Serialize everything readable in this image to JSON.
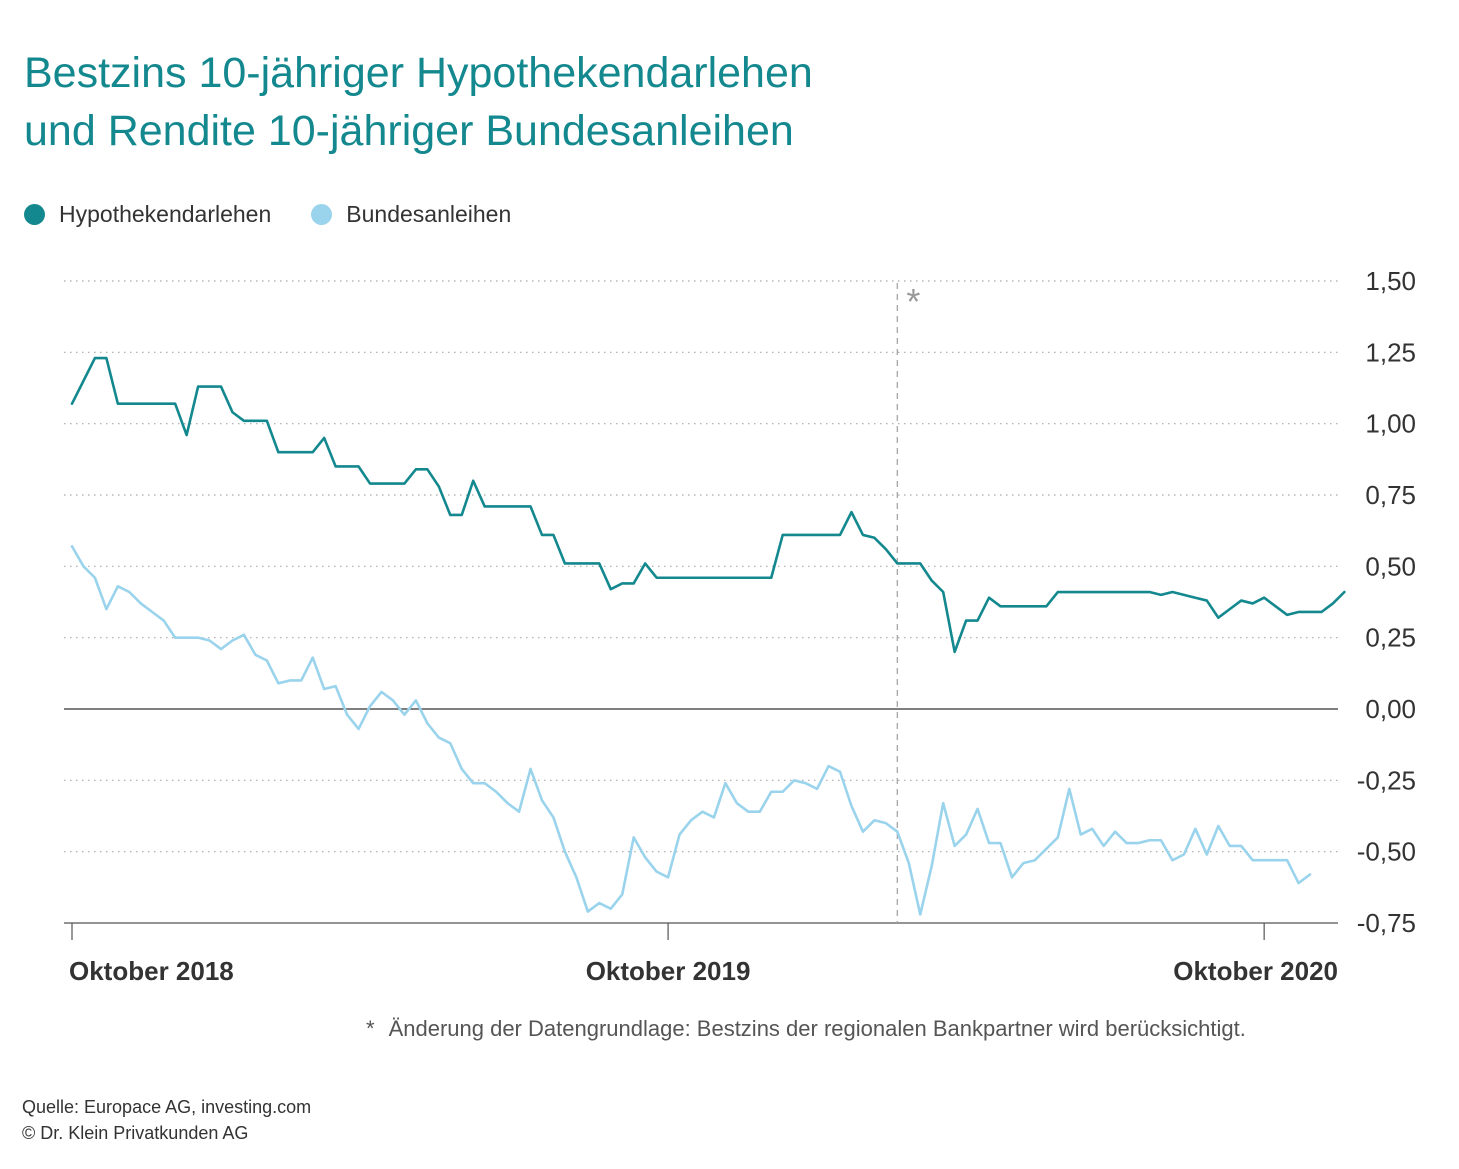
{
  "title_line1": "Bestzins 10-jähriger Hypothekendarlehen",
  "title_line2": "und Rendite 10-jähriger Bundesanleihen",
  "legend": [
    {
      "label": "Hypothekendarlehen",
      "color": "#13888e"
    },
    {
      "label": "Bundesanleihen",
      "color": "#9ad3ec"
    }
  ],
  "footnote_marker": "*",
  "footnote_text": "Änderung der Datengrundlage: Bestzins der regionalen Bankpartner wird berücksichtigt.",
  "source_line1": "Quelle: Europace AG, investing.com",
  "source_line2": "© Dr. Klein Privatkunden AG",
  "chart_data": {
    "type": "line",
    "title": "Bestzins 10-jähriger Hypothekendarlehen und Rendite 10-jähriger Bundesanleihen",
    "xlabel": "",
    "ylabel": "",
    "ylim": [
      -0.75,
      1.5
    ],
    "yticks": [
      "1,50",
      "1,25",
      "1,00",
      "0,75",
      "0,50",
      "0,25",
      "0,00",
      "-0,25",
      "-0,50",
      "-0,75"
    ],
    "ytick_values": [
      1.5,
      1.25,
      1.0,
      0.75,
      0.5,
      0.25,
      0.0,
      -0.25,
      -0.5,
      -0.75
    ],
    "x_unit": "weeks since Oktober 2018",
    "xlim": [
      0,
      108
    ],
    "xticks": [
      {
        "x": 0,
        "label": "Oktober 2018"
      },
      {
        "x": 52,
        "label": "Oktober 2019"
      },
      {
        "x": 104,
        "label": "Oktober 2020"
      }
    ],
    "marker": {
      "x": 72,
      "label": "*"
    },
    "grid": true,
    "series": [
      {
        "name": "Hypothekendarlehen",
        "color": "#13888e",
        "values": [
          1.07,
          1.15,
          1.23,
          1.23,
          1.07,
          1.07,
          1.07,
          1.07,
          1.07,
          1.07,
          0.96,
          1.13,
          1.13,
          1.13,
          1.04,
          1.01,
          1.01,
          1.01,
          0.9,
          0.9,
          0.9,
          0.9,
          0.95,
          0.85,
          0.85,
          0.85,
          0.79,
          0.79,
          0.79,
          0.79,
          0.84,
          0.84,
          0.78,
          0.68,
          0.68,
          0.8,
          0.71,
          0.71,
          0.71,
          0.71,
          0.71,
          0.61,
          0.61,
          0.51,
          0.51,
          0.51,
          0.51,
          0.42,
          0.44,
          0.44,
          0.51,
          0.46,
          0.46,
          0.46,
          0.46,
          0.46,
          0.46,
          0.46,
          0.46,
          0.46,
          0.46,
          0.46,
          0.61,
          0.61,
          0.61,
          0.61,
          0.61,
          0.61,
          0.69,
          0.61,
          0.6,
          0.56,
          0.51,
          0.51,
          0.51,
          0.45,
          0.41,
          0.2,
          0.31,
          0.31,
          0.39,
          0.36,
          0.36,
          0.36,
          0.36,
          0.36,
          0.41,
          0.41,
          0.41,
          0.41,
          0.41,
          0.41,
          0.41,
          0.41,
          0.41,
          0.4,
          0.41,
          0.4,
          0.39,
          0.38,
          0.32,
          0.35,
          0.38,
          0.37,
          0.39,
          0.36,
          0.33,
          0.34,
          0.34,
          0.34,
          0.37,
          0.41
        ]
      },
      {
        "name": "Bundesanleihen",
        "color": "#9ad3ec",
        "values": [
          0.57,
          0.5,
          0.46,
          0.35,
          0.43,
          0.41,
          0.37,
          0.34,
          0.31,
          0.25,
          0.25,
          0.25,
          0.24,
          0.21,
          0.24,
          0.26,
          0.19,
          0.17,
          0.09,
          0.1,
          0.1,
          0.18,
          0.07,
          0.08,
          -0.02,
          -0.07,
          0.01,
          0.06,
          0.03,
          -0.02,
          0.03,
          -0.05,
          -0.1,
          -0.12,
          -0.21,
          -0.26,
          -0.26,
          -0.29,
          -0.33,
          -0.36,
          -0.21,
          -0.32,
          -0.38,
          -0.5,
          -0.59,
          -0.71,
          -0.68,
          -0.7,
          -0.65,
          -0.45,
          -0.52,
          -0.57,
          -0.59,
          -0.44,
          -0.39,
          -0.36,
          -0.38,
          -0.26,
          -0.33,
          -0.36,
          -0.36,
          -0.29,
          -0.29,
          -0.25,
          -0.26,
          -0.28,
          -0.2,
          -0.22,
          -0.34,
          -0.43,
          -0.39,
          -0.4,
          -0.43,
          -0.54,
          -0.72,
          -0.55,
          -0.33,
          -0.48,
          -0.44,
          -0.35,
          -0.47,
          -0.47,
          -0.59,
          -0.54,
          -0.53,
          -0.49,
          -0.45,
          -0.28,
          -0.44,
          -0.42,
          -0.48,
          -0.43,
          -0.47,
          -0.47,
          -0.46,
          -0.46,
          -0.53,
          -0.51,
          -0.42,
          -0.51,
          -0.41,
          -0.48,
          -0.48,
          -0.53,
          -0.53,
          -0.53,
          -0.53,
          -0.61,
          -0.58
        ]
      }
    ]
  }
}
